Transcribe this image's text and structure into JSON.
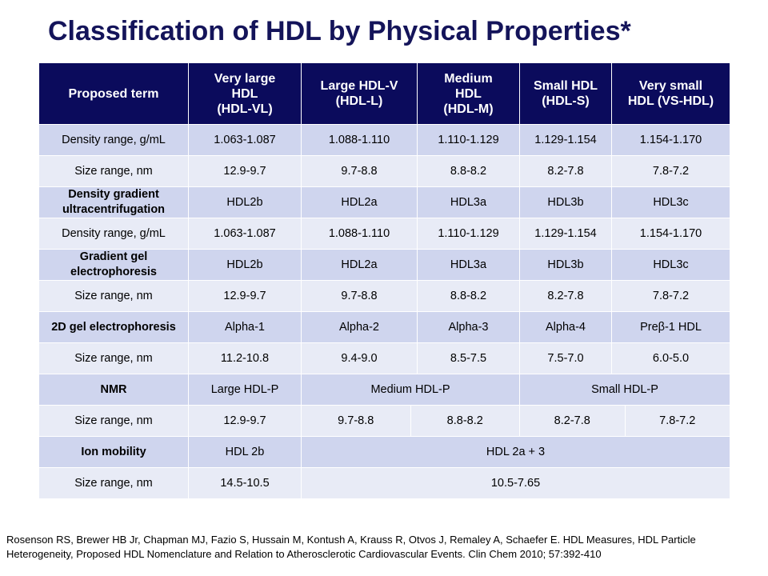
{
  "title": "Classification of HDL by Physical Properties*",
  "header": {
    "col0": "Proposed term",
    "col1": "Very large HDL (HDL-VL)",
    "col1_lines": [
      "Very large",
      "HDL",
      "(HDL-VL)"
    ],
    "col2_lines": [
      "Large HDL-V",
      "(HDL-L)"
    ],
    "col3_lines": [
      "Medium",
      "HDL",
      "(HDL-M)"
    ],
    "col4_lines": [
      "Small HDL",
      "(HDL-S)"
    ],
    "col5_lines": [
      "Very small",
      "HDL (VS-HDL)"
    ]
  },
  "rows": {
    "r1": {
      "label": "Density range, g/mL",
      "c1": "1.063-1.087",
      "c2": "1.088-1.110",
      "c3": "1.110-1.129",
      "c4": "1.129-1.154",
      "c5": "1.154-1.170"
    },
    "r2": {
      "label": "Size range, nm",
      "c1": "12.9-9.7",
      "c2": "9.7-8.8",
      "c3": "8.8-8.2",
      "c4": "8.2-7.8",
      "c5": "7.8-7.2"
    },
    "r3": {
      "label": "Density gradient ultracentrifugation",
      "c1": "HDL2b",
      "c2": "HDL2a",
      "c3": "HDL3a",
      "c4": "HDL3b",
      "c5": "HDL3c"
    },
    "r4": {
      "label": "Density range, g/mL",
      "c1": "1.063-1.087",
      "c2": "1.088-1.110",
      "c3": "1.110-1.129",
      "c4": "1.129-1.154",
      "c5": "1.154-1.170"
    },
    "r5": {
      "label": "Gradient gel electrophoresis",
      "c1": "HDL2b",
      "c2": "HDL2a",
      "c3": "HDL3a",
      "c4": "HDL3b",
      "c5": "HDL3c"
    },
    "r6": {
      "label": "Size range, nm",
      "c1": "12.9-9.7",
      "c2": "9.7-8.8",
      "c3": "8.8-8.2",
      "c4": "8.2-7.8",
      "c5": "7.8-7.2"
    },
    "r7": {
      "label": "2D gel electrophoresis",
      "c1": "Alpha-1",
      "c2": "Alpha-2",
      "c3": "Alpha-3",
      "c4": "Alpha-4",
      "c5": "Preβ-1 HDL"
    },
    "r8": {
      "label": "Size range, nm",
      "c1": "11.2-10.8",
      "c2": "9.4-9.0",
      "c3": "8.5-7.5",
      "c4": "7.5-7.0",
      "c5": "6.0-5.0"
    },
    "r9": {
      "label": "NMR",
      "c1": "Large HDL-P",
      "c23": "Medium  HDL-P",
      "c45": "Small HDL-P"
    },
    "r10": {
      "label": "Size range, nm",
      "v1": "12.9-9.7",
      "v2": "9.7-8.8",
      "v3": "8.8-8.2",
      "v4": "8.2-7.8",
      "v5": "7.8-7.2"
    },
    "r11": {
      "label": "Ion mobility",
      "c1": "HDL 2b",
      "c25": "HDL 2a + 3"
    },
    "r12": {
      "label": "Size range, nm",
      "c1": "14.5-10.5",
      "c25": "10.5-7.65"
    }
  },
  "citation": "Rosenson RS, Brewer HB Jr, Chapman MJ, Fazio S, Hussain M, Kontush A, Krauss R, Otvos J, Remaley A, Schaefer E. HDL Measures, HDL Particle Heterogeneity, Proposed HDL Nomenclature and Relation to Atherosclerotic Cardiovascular Events. Clin Chem 2010; 57:392-410",
  "colors": {
    "title": "#14145a",
    "header_bg": "#0b0b5c",
    "row_dark": "#cfd5ee",
    "row_light": "#e8ebf6"
  }
}
